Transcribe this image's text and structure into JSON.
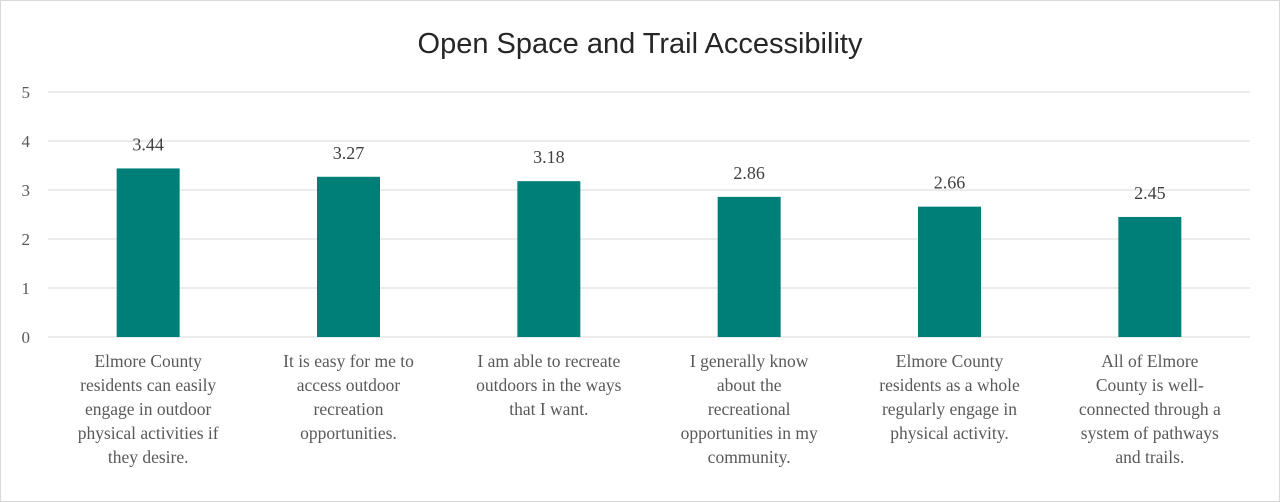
{
  "chart_data": {
    "type": "bar",
    "title": "Open Space and Trail Accessibility",
    "xlabel": "",
    "ylabel": "",
    "ylim": [
      0,
      5
    ],
    "yticks": [
      "0",
      "1",
      "2",
      "3",
      "4",
      "5"
    ],
    "grid": true,
    "legend": "none",
    "bar_color": "#007f78",
    "categories": [
      [
        "Elmore County",
        "residents can easily",
        "engage in outdoor",
        "physical activities if",
        "they desire."
      ],
      [
        "It is easy for me to",
        "access outdoor",
        "recreation",
        "opportunities."
      ],
      [
        "I am able to recreate",
        "outdoors in the ways",
        "that I want."
      ],
      [
        "I generally know",
        "about the",
        "recreational",
        "opportunities in my",
        "community."
      ],
      [
        "Elmore County",
        "residents as a whole",
        "regularly engage in",
        "physical activity."
      ],
      [
        "All of Elmore",
        "County is well-",
        "connected through a",
        "system of pathways",
        "and trails."
      ]
    ],
    "values": [
      3.44,
      3.27,
      3.18,
      2.86,
      2.66,
      2.45
    ],
    "data_labels": [
      "3.44",
      "3.27",
      "3.18",
      "2.86",
      "2.66",
      "2.45"
    ]
  }
}
